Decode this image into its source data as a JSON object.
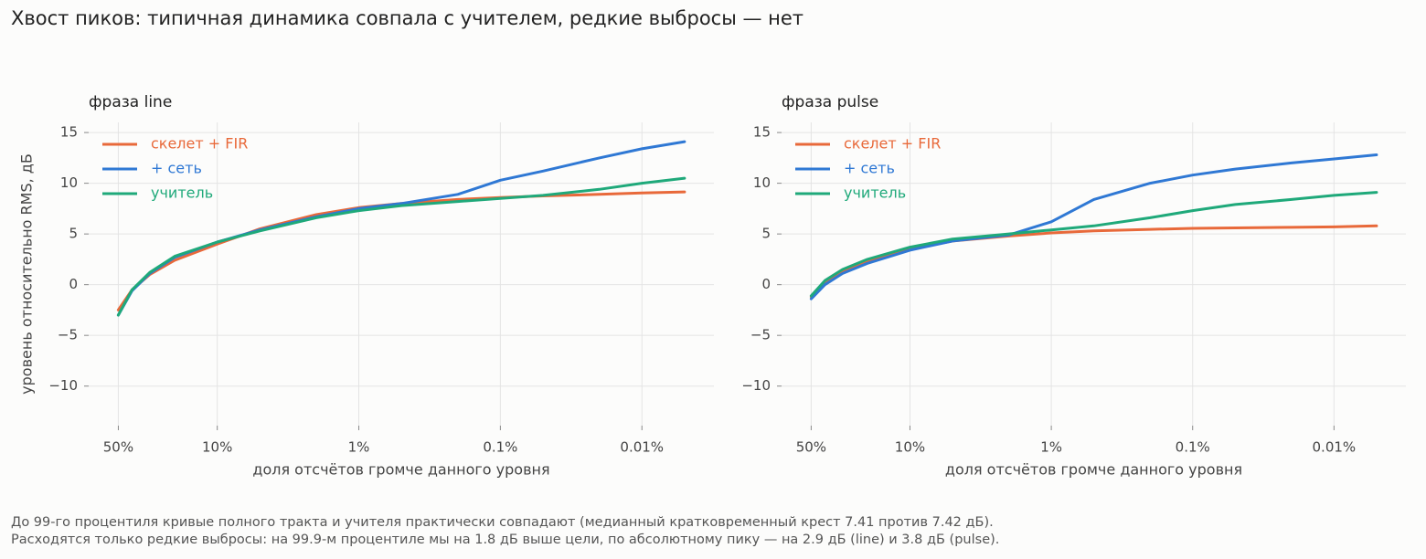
{
  "title": "Хвост пиков: типичная динамика совпала с учителем, редкие выбросы — нет",
  "chart_data": [
    {
      "type": "line",
      "title": "фраза line",
      "xlabel": "доля отсчётов громче данного уровня",
      "ylabel": "уровень относительно RMS, дБ",
      "xscale": "log",
      "grid": true,
      "legend": "upper left",
      "x": [
        50,
        40,
        30,
        20,
        10,
        5,
        2,
        1,
        0.5,
        0.2,
        0.1,
        0.05,
        0.02,
        0.01,
        0.005
      ],
      "series": [
        {
          "name": "скелет + FIR",
          "color": "#e8693a",
          "values": [
            -2.5,
            -0.5,
            1.0,
            2.4,
            4.0,
            5.5,
            6.9,
            7.6,
            8.0,
            8.4,
            8.6,
            8.75,
            8.9,
            9.05,
            9.15
          ]
        },
        {
          "name": "+ сеть",
          "color": "#2f78d4",
          "values": [
            -3.0,
            -0.6,
            1.1,
            2.7,
            4.2,
            5.4,
            6.7,
            7.5,
            8.0,
            8.9,
            10.3,
            11.2,
            12.5,
            13.4,
            14.1
          ]
        },
        {
          "name": "учитель",
          "color": "#1fa97a",
          "values": [
            -3.0,
            -0.5,
            1.2,
            2.8,
            4.2,
            5.3,
            6.6,
            7.3,
            7.8,
            8.2,
            8.5,
            8.8,
            9.4,
            10.0,
            10.5
          ]
        }
      ],
      "xlim": [
        81,
        0.0031
      ],
      "xticks": [
        {
          "value": 50,
          "label": "50%"
        },
        {
          "value": 10,
          "label": "10%"
        },
        {
          "value": 1,
          "label": "1%"
        },
        {
          "value": 0.1,
          "label": "0.1%"
        },
        {
          "value": 0.01,
          "label": "0.01%"
        }
      ],
      "ylim": [
        -13.9,
        16
      ],
      "yticks": [
        {
          "value": -10,
          "label": "−10"
        },
        {
          "value": -5,
          "label": "−5"
        },
        0,
        5,
        10,
        15
      ]
    },
    {
      "type": "line",
      "title": "фраза pulse",
      "xlabel": "доля отсчётов громче данного уровня",
      "xscale": "log",
      "grid": true,
      "legend": "upper left",
      "x": [
        50,
        40,
        30,
        20,
        10,
        5,
        2,
        1,
        0.5,
        0.2,
        0.1,
        0.05,
        0.02,
        0.01,
        0.005
      ],
      "series": [
        {
          "name": "скелет + FIR",
          "color": "#e8693a",
          "values": [
            -1.2,
            0.3,
            1.3,
            2.3,
            3.5,
            4.3,
            4.8,
            5.1,
            5.3,
            5.45,
            5.55,
            5.6,
            5.65,
            5.7,
            5.8
          ]
        },
        {
          "name": "+ сеть",
          "color": "#2f78d4",
          "values": [
            -1.4,
            0.0,
            1.1,
            2.1,
            3.4,
            4.3,
            4.9,
            6.2,
            8.4,
            10.0,
            10.8,
            11.4,
            12.0,
            12.4,
            12.8
          ]
        },
        {
          "name": "учитель",
          "color": "#1fa97a",
          "values": [
            -1.1,
            0.4,
            1.5,
            2.5,
            3.7,
            4.5,
            5.0,
            5.4,
            5.8,
            6.6,
            7.3,
            7.9,
            8.4,
            8.8,
            9.1
          ]
        }
      ],
      "xlim": [
        81,
        0.0031
      ],
      "xticks": [
        {
          "value": 50,
          "label": "50%"
        },
        {
          "value": 10,
          "label": "10%"
        },
        {
          "value": 1,
          "label": "1%"
        },
        {
          "value": 0.1,
          "label": "0.1%"
        },
        {
          "value": 0.01,
          "label": "0.01%"
        }
      ],
      "ylim": [
        -13.9,
        16
      ],
      "yticks": [
        {
          "value": -10,
          "label": "−10"
        },
        {
          "value": -5,
          "label": "−5"
        },
        0,
        5,
        10,
        15
      ]
    }
  ],
  "footnote": [
    "До 99-го процентиля кривые полного тракта и учителя практически совпадают (медианный кратковременный крест 7.41 против 7.42 дБ).",
    "Расходятся только редкие выбросы: на 99.9-м процентиле мы на 1.8 дБ выше цели, по абсолютному пику — на 2.9 дБ (line) и 3.8 дБ (pulse)."
  ]
}
